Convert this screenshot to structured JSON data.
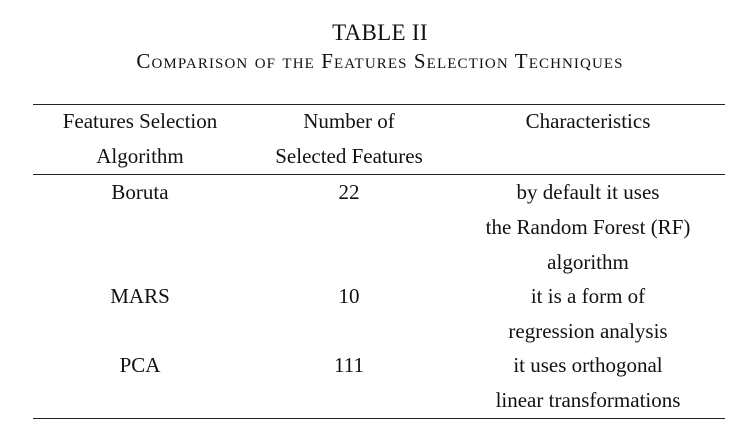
{
  "caption": {
    "number": "TABLE II",
    "title": "Comparison of the Features Selection Techniques"
  },
  "table": {
    "headers": [
      {
        "lines": [
          "Features Selection",
          "Algorithm"
        ]
      },
      {
        "lines": [
          "Number of",
          "Selected Features"
        ]
      },
      {
        "lines": [
          "Characteristics"
        ]
      }
    ],
    "rows": [
      {
        "algorithm": "Boruta",
        "num_features": "22",
        "characteristics": [
          "by default it uses",
          "the Random Forest (RF)",
          "algorithm"
        ]
      },
      {
        "algorithm": "MARS",
        "num_features": "10",
        "characteristics": [
          "it is a form of",
          "regression analysis"
        ]
      },
      {
        "algorithm": "PCA",
        "num_features": "111",
        "characteristics": [
          "it uses orthogonal",
          "linear transformations"
        ]
      }
    ]
  }
}
